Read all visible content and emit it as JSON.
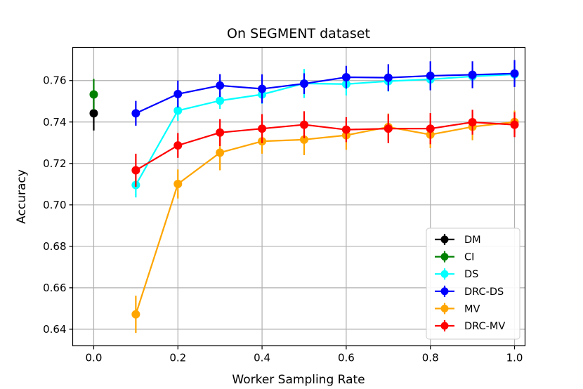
{
  "chart_data": {
    "type": "line",
    "title": "On SEGMENT dataset",
    "xlabel": "Worker Sampling Rate",
    "ylabel": "Accuracy",
    "xlim": [
      -0.05,
      1.025
    ],
    "ylim": [
      0.632,
      0.776
    ],
    "xticks": [
      0.0,
      0.2,
      0.4,
      0.6,
      0.8,
      1.0
    ],
    "xtick_labels": [
      "0.0",
      "0.2",
      "0.4",
      "0.6",
      "0.8",
      "1.0"
    ],
    "yticks": [
      0.64,
      0.66,
      0.68,
      0.7,
      0.72,
      0.74,
      0.76
    ],
    "ytick_labels": [
      "0.64",
      "0.66",
      "0.68",
      "0.70",
      "0.72",
      "0.74",
      "0.76"
    ],
    "grid": true,
    "legend_position": "bottom-right",
    "series": [
      {
        "name": "DM",
        "color": "#000000",
        "x": [
          0.0
        ],
        "y": [
          0.7442
        ],
        "err": [
          0.0083
        ]
      },
      {
        "name": "CI",
        "color": "#008000",
        "x": [
          0.0
        ],
        "y": [
          0.7533
        ],
        "err": [
          0.0075
        ]
      },
      {
        "name": "DS",
        "color": "#00ffff",
        "x": [
          0.1,
          0.2,
          0.3,
          0.4,
          0.5,
          0.6,
          0.7,
          0.8,
          0.9,
          1.0
        ],
        "y": [
          0.7096,
          0.7455,
          0.7503,
          0.7533,
          0.7586,
          0.7583,
          0.7597,
          0.7606,
          0.762,
          0.763
        ],
        "err": [
          0.006,
          0.005,
          0.004,
          0.0045,
          0.007,
          0.0055,
          0.005,
          0.0045,
          0.004,
          0.004
        ]
      },
      {
        "name": "DRC-DS",
        "color": "#0000ff",
        "x": [
          0.1,
          0.2,
          0.3,
          0.4,
          0.5,
          0.6,
          0.7,
          0.8,
          0.9,
          1.0
        ],
        "y": [
          0.7442,
          0.7535,
          0.7576,
          0.756,
          0.7585,
          0.7616,
          0.7614,
          0.7623,
          0.7628,
          0.7634
        ],
        "err": [
          0.006,
          0.0065,
          0.0055,
          0.007,
          0.005,
          0.0055,
          0.0065,
          0.007,
          0.0065,
          0.0065
        ]
      },
      {
        "name": "MV",
        "color": "#ffa500",
        "x": [
          0.1,
          0.2,
          0.3,
          0.4,
          0.5,
          0.6,
          0.7,
          0.8,
          0.9,
          1.0
        ],
        "y": [
          0.6472,
          0.7101,
          0.7252,
          0.7307,
          0.7315,
          0.7336,
          0.7376,
          0.7339,
          0.7377,
          0.74
        ],
        "err": [
          0.009,
          0.007,
          0.0085,
          0.006,
          0.0075,
          0.007,
          0.0065,
          0.0065,
          0.0065,
          0.0055
        ]
      },
      {
        "name": "DRC-MV",
        "color": "#ff0000",
        "x": [
          0.1,
          0.2,
          0.3,
          0.4,
          0.5,
          0.6,
          0.7,
          0.8,
          0.9,
          1.0
        ],
        "y": [
          0.7167,
          0.7287,
          0.7349,
          0.7368,
          0.7387,
          0.7363,
          0.7368,
          0.7368,
          0.7399,
          0.7387
        ],
        "err": [
          0.008,
          0.006,
          0.0065,
          0.007,
          0.0065,
          0.006,
          0.007,
          0.0075,
          0.006,
          0.006
        ]
      }
    ]
  }
}
